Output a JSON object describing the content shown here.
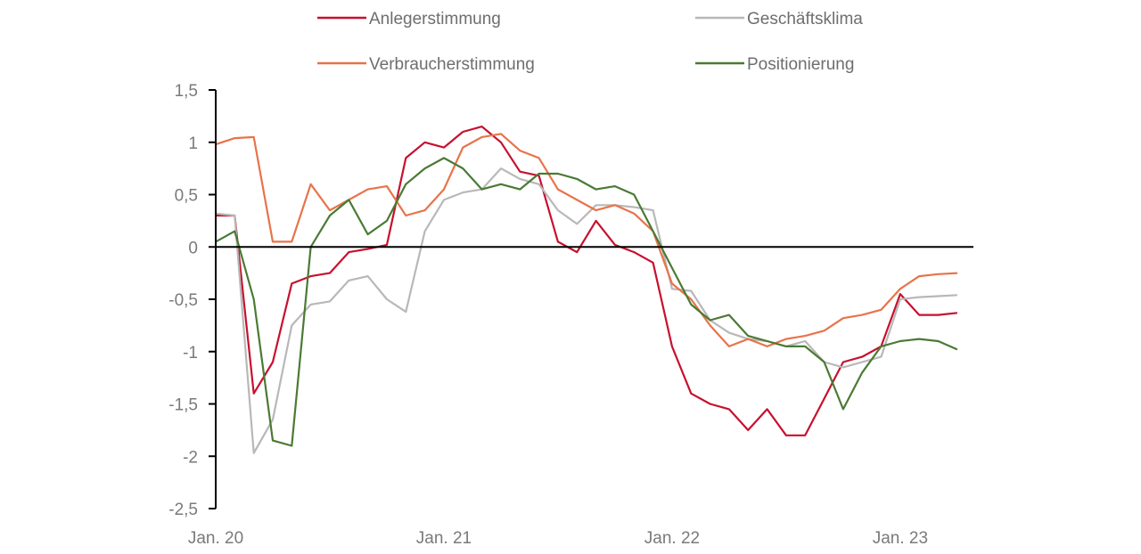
{
  "chart_data": {
    "type": "line",
    "title": "",
    "xlabel": "",
    "ylabel": "",
    "ylim": [
      -2.5,
      1.5
    ],
    "yticks": [
      "1,5",
      "1",
      "0,5",
      "0",
      "-0,5",
      "-1",
      "-1,5",
      "-2",
      "-2,5"
    ],
    "ytick_values": [
      1.5,
      1,
      0.5,
      0,
      -0.5,
      -1,
      -1.5,
      -2,
      -2.5
    ],
    "xticks": [
      "Jan. 20",
      "Jan. 21",
      "Jan. 22",
      "Jan. 23"
    ],
    "xtick_values": [
      "2020-01",
      "2021-01",
      "2022-01",
      "2023-01"
    ],
    "x": [
      "2020-01",
      "2020-02",
      "2020-03",
      "2020-04",
      "2020-05",
      "2020-06",
      "2020-07",
      "2020-08",
      "2020-09",
      "2020-10",
      "2020-11",
      "2020-12",
      "2021-01",
      "2021-02",
      "2021-03",
      "2021-04",
      "2021-05",
      "2021-06",
      "2021-07",
      "2021-08",
      "2021-09",
      "2021-10",
      "2021-11",
      "2021-12",
      "2022-01",
      "2022-02",
      "2022-03",
      "2022-04",
      "2022-05",
      "2022-06",
      "2022-07",
      "2022-08",
      "2022-09",
      "2022-10",
      "2022-11",
      "2022-12",
      "2023-01",
      "2023-02",
      "2023-03",
      "2023-04"
    ],
    "legend_position": "top",
    "grid": false,
    "series": [
      {
        "name": "Anlegerstimmung",
        "color": "#c8102e",
        "values": [
          0.3,
          0.3,
          -1.4,
          -1.1,
          -0.35,
          -0.28,
          -0.25,
          -0.05,
          -0.02,
          0.02,
          0.85,
          1.0,
          0.95,
          1.1,
          1.15,
          1.0,
          0.72,
          0.68,
          0.05,
          -0.05,
          0.25,
          0.02,
          -0.05,
          -0.15,
          -0.95,
          -1.4,
          -1.5,
          -1.55,
          -1.75,
          -1.55,
          -1.8,
          -1.8,
          -1.45,
          -1.1,
          -1.05,
          -0.95,
          -0.45,
          -0.65,
          -0.65,
          -0.63
        ]
      },
      {
        "name": "Geschäftsklima",
        "color": "#b8b8b8",
        "values": [
          0.32,
          0.3,
          -1.97,
          -1.65,
          -0.75,
          -0.55,
          -0.52,
          -0.32,
          -0.28,
          -0.5,
          -0.62,
          0.15,
          0.45,
          0.52,
          0.55,
          0.75,
          0.65,
          0.6,
          0.35,
          0.22,
          0.4,
          0.4,
          0.38,
          0.35,
          -0.4,
          -0.42,
          -0.7,
          -0.82,
          -0.88,
          -0.9,
          -0.95,
          -0.9,
          -1.1,
          -1.15,
          -1.1,
          -1.05,
          -0.5,
          -0.48,
          -0.47,
          -0.46
        ]
      },
      {
        "name": "Verbraucherstimmung",
        "color": "#e8734a",
        "values": [
          0.98,
          1.04,
          1.05,
          0.05,
          0.05,
          0.6,
          0.35,
          0.45,
          0.55,
          0.58,
          0.3,
          0.35,
          0.55,
          0.95,
          1.05,
          1.08,
          0.92,
          0.85,
          0.55,
          0.45,
          0.35,
          0.4,
          0.32,
          0.15,
          -0.35,
          -0.5,
          -0.75,
          -0.95,
          -0.88,
          -0.95,
          -0.88,
          -0.85,
          -0.8,
          -0.68,
          -0.65,
          -0.6,
          -0.4,
          -0.28,
          -0.26,
          -0.25
        ]
      },
      {
        "name": "Positionierung",
        "color": "#4a7a34",
        "values": [
          0.05,
          0.15,
          -0.5,
          -1.85,
          -1.9,
          0.0,
          0.3,
          0.45,
          0.12,
          0.25,
          0.6,
          0.75,
          0.85,
          0.75,
          0.55,
          0.6,
          0.55,
          0.7,
          0.7,
          0.65,
          0.55,
          0.58,
          0.5,
          0.15,
          -0.2,
          -0.55,
          -0.7,
          -0.65,
          -0.85,
          -0.9,
          -0.95,
          -0.95,
          -1.1,
          -1.55,
          -1.2,
          -0.95,
          -0.9,
          -0.88,
          -0.9,
          -0.98
        ]
      }
    ]
  }
}
